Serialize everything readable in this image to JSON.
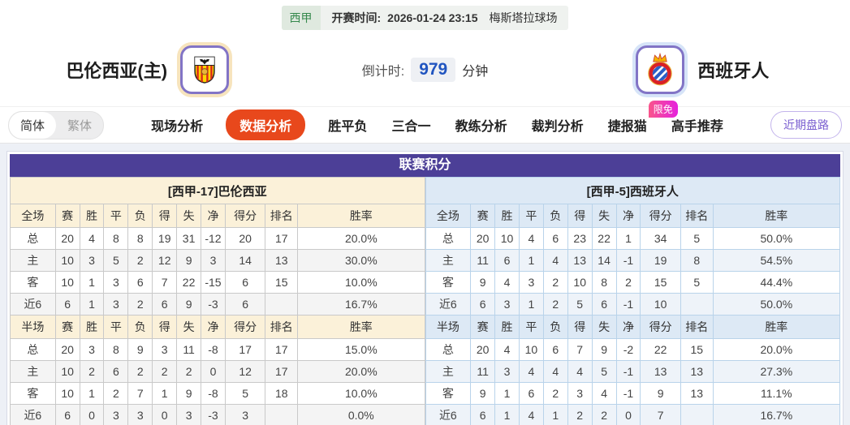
{
  "match_header": {
    "league": "西甲",
    "kickoff_label": "开赛时间:",
    "kickoff_time": "2026-01-24 23:15",
    "venue": "梅斯塔拉球场",
    "home_team": "巴伦西亚(主)",
    "away_team": "西班牙人",
    "countdown_label": "倒计时:",
    "countdown_value": "979",
    "countdown_unit": "分钟"
  },
  "lang_toggle": {
    "simplified": "简体",
    "traditional": "繁体"
  },
  "nav": {
    "tabs": [
      {
        "label": "现场分析",
        "active": false
      },
      {
        "label": "数据分析",
        "active": true
      },
      {
        "label": "胜平负",
        "active": false
      },
      {
        "label": "三合一",
        "active": false
      },
      {
        "label": "教练分析",
        "active": false
      },
      {
        "label": "裁判分析",
        "active": false
      },
      {
        "label": "捷报猫",
        "active": false,
        "badge": "限免"
      },
      {
        "label": "高手推荐",
        "active": false
      }
    ],
    "recent_button": "近期盘路"
  },
  "colors": {
    "accent_orange": "#e8481c",
    "purple_header": "#4c3f97",
    "badge_pink": "#e522dd",
    "league_green": "#35894c",
    "countdown_blue": "#2155c0",
    "home_label_red": "#c0392a",
    "away_label_blue": "#2b3fc0"
  },
  "table": {
    "title": "联赛积分",
    "columns_full": [
      "全场",
      "赛",
      "胜",
      "平",
      "负",
      "得",
      "失",
      "净",
      "得分",
      "排名",
      "胜率"
    ],
    "columns_half": [
      "半场",
      "赛",
      "胜",
      "平",
      "负",
      "得",
      "失",
      "净",
      "得分",
      "排名",
      "胜率"
    ],
    "home": {
      "header": "[西甲-17]巴伦西亚",
      "full_rows": [
        {
          "label": "总",
          "type": "total",
          "cells": [
            "20",
            "4",
            "8",
            "8",
            "19",
            "31",
            "-12",
            "20",
            "17",
            "20.0%"
          ]
        },
        {
          "label": "主",
          "type": "home",
          "cells": [
            "10",
            "3",
            "5",
            "2",
            "12",
            "9",
            "3",
            "14",
            "13",
            "30.0%"
          ]
        },
        {
          "label": "客",
          "type": "away",
          "cells": [
            "10",
            "1",
            "3",
            "6",
            "7",
            "22",
            "-15",
            "6",
            "15",
            "10.0%"
          ]
        },
        {
          "label": "近6",
          "type": "recent6",
          "cells": [
            "6",
            "1",
            "3",
            "2",
            "6",
            "9",
            "-3",
            "6",
            "",
            "16.7%"
          ]
        }
      ],
      "half_rows": [
        {
          "label": "总",
          "type": "total",
          "cells": [
            "20",
            "3",
            "8",
            "9",
            "3",
            "11",
            "-8",
            "17",
            "17",
            "15.0%"
          ]
        },
        {
          "label": "主",
          "type": "home",
          "cells": [
            "10",
            "2",
            "6",
            "2",
            "2",
            "2",
            "0",
            "12",
            "17",
            "20.0%"
          ]
        },
        {
          "label": "客",
          "type": "away",
          "cells": [
            "10",
            "1",
            "2",
            "7",
            "1",
            "9",
            "-8",
            "5",
            "18",
            "10.0%"
          ]
        },
        {
          "label": "近6",
          "type": "recent6",
          "cells": [
            "6",
            "0",
            "3",
            "3",
            "0",
            "3",
            "-3",
            "3",
            "",
            "0.0%"
          ]
        }
      ]
    },
    "away": {
      "header": "[西甲-5]西班牙人",
      "full_rows": [
        {
          "label": "总",
          "type": "total",
          "cells": [
            "20",
            "10",
            "4",
            "6",
            "23",
            "22",
            "1",
            "34",
            "5",
            "50.0%"
          ]
        },
        {
          "label": "主",
          "type": "home",
          "cells": [
            "11",
            "6",
            "1",
            "4",
            "13",
            "14",
            "-1",
            "19",
            "8",
            "54.5%"
          ]
        },
        {
          "label": "客",
          "type": "away",
          "cells": [
            "9",
            "4",
            "3",
            "2",
            "10",
            "8",
            "2",
            "15",
            "5",
            "44.4%"
          ]
        },
        {
          "label": "近6",
          "type": "recent6",
          "cells": [
            "6",
            "3",
            "1",
            "2",
            "5",
            "6",
            "-1",
            "10",
            "",
            "50.0%"
          ]
        }
      ],
      "half_rows": [
        {
          "label": "总",
          "type": "total",
          "cells": [
            "20",
            "4",
            "10",
            "6",
            "7",
            "9",
            "-2",
            "22",
            "15",
            "20.0%"
          ]
        },
        {
          "label": "主",
          "type": "home",
          "cells": [
            "11",
            "3",
            "4",
            "4",
            "4",
            "5",
            "-1",
            "13",
            "13",
            "27.3%"
          ]
        },
        {
          "label": "客",
          "type": "away",
          "cells": [
            "9",
            "1",
            "6",
            "2",
            "3",
            "4",
            "-1",
            "9",
            "13",
            "11.1%"
          ]
        },
        {
          "label": "近6",
          "type": "recent6",
          "cells": [
            "6",
            "1",
            "4",
            "1",
            "2",
            "2",
            "0",
            "7",
            "",
            "16.7%"
          ]
        }
      ]
    }
  }
}
